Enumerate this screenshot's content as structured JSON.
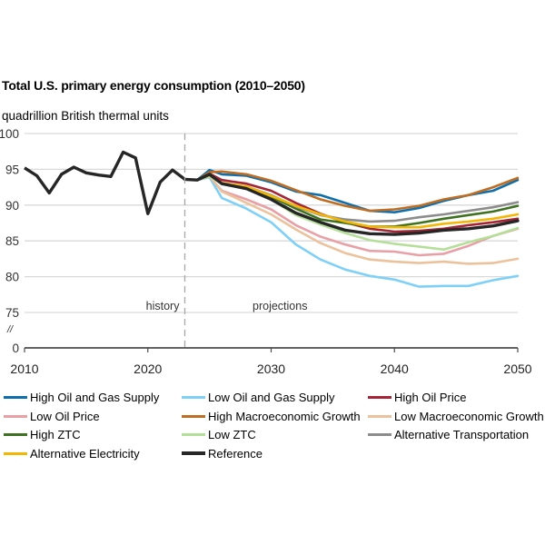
{
  "chart_data": {
    "type": "line",
    "title": "Total U.S. primary energy consumption (2010–2050)",
    "ylabel": "quadrillion British thermal units",
    "xlabel": "",
    "xlim": [
      2010,
      2050
    ],
    "ylim": [
      75,
      100
    ],
    "y_axis_break": true,
    "x_ticks": [
      "2010",
      "2020",
      "2030",
      "2040",
      "2050"
    ],
    "y_ticks": [
      "100",
      "95",
      "90",
      "85",
      "80",
      "75",
      "0"
    ],
    "break_marker": "//",
    "grid": true,
    "divider_year": 2023,
    "annotations": {
      "history": "history",
      "projections": "projections"
    },
    "legend_position": "bottom",
    "history": {
      "x": [
        2010,
        2011,
        2012,
        2013,
        2014,
        2015,
        2016,
        2017,
        2018,
        2019,
        2020,
        2021,
        2022,
        2023
      ],
      "values": [
        95.2,
        94.1,
        91.7,
        94.3,
        95.3,
        94.5,
        94.2,
        94.0,
        97.4,
        96.6,
        88.8,
        93.2,
        94.9,
        93.6
      ]
    },
    "projection_x": [
      2023,
      2024,
      2025,
      2026,
      2028,
      2030,
      2032,
      2034,
      2036,
      2038,
      2040,
      2042,
      2044,
      2046,
      2048,
      2050
    ],
    "series": [
      {
        "name": "High Oil and Gas Supply",
        "color": "#0f6fad",
        "values": [
          93.6,
          93.5,
          94.9,
          94.3,
          94.1,
          93.2,
          91.9,
          91.4,
          90.3,
          89.2,
          89.0,
          89.6,
          90.6,
          91.4,
          92.0,
          93.5
        ]
      },
      {
        "name": "Low Oil and Gas Supply",
        "color": "#7fd0f6",
        "values": [
          93.6,
          93.5,
          93.9,
          91.0,
          89.5,
          87.6,
          84.5,
          82.4,
          81.0,
          80.1,
          79.6,
          78.6,
          78.7,
          78.7,
          79.5,
          80.1
        ]
      },
      {
        "name": "High Oil Price",
        "color": "#a52436",
        "values": [
          93.6,
          93.5,
          94.4,
          93.5,
          93.0,
          92.0,
          90.3,
          88.8,
          87.6,
          86.7,
          86.3,
          86.4,
          86.7,
          87.2,
          87.6,
          88.1
        ]
      },
      {
        "name": "Low Oil Price",
        "color": "#e8a0a6",
        "values": [
          93.6,
          93.5,
          94.0,
          92.0,
          90.8,
          89.4,
          87.2,
          85.6,
          84.5,
          83.6,
          83.5,
          83.0,
          83.2,
          84.3,
          85.7,
          86.7
        ]
      },
      {
        "name": "High Macroeconomic Growth",
        "color": "#bf6d22",
        "values": [
          93.6,
          93.5,
          94.6,
          94.7,
          94.3,
          93.4,
          92.1,
          90.8,
          89.9,
          89.2,
          89.4,
          89.9,
          90.8,
          91.4,
          92.5,
          93.8
        ]
      },
      {
        "name": "Low Macroeconomic Growth",
        "color": "#ecc29c",
        "values": [
          93.6,
          93.5,
          94.1,
          91.9,
          90.3,
          88.7,
          86.6,
          84.7,
          83.3,
          82.4,
          82.1,
          81.9,
          82.1,
          81.8,
          81.9,
          82.5
        ]
      },
      {
        "name": "High ZTC",
        "color": "#3f7220",
        "values": [
          93.6,
          93.5,
          94.2,
          93.0,
          92.6,
          91.2,
          89.5,
          88.0,
          87.5,
          87.0,
          87.0,
          87.5,
          88.1,
          88.6,
          89.1,
          89.9
        ]
      },
      {
        "name": "Low ZTC",
        "color": "#b4df98",
        "values": [
          93.6,
          93.5,
          94.0,
          93.0,
          92.4,
          90.8,
          88.6,
          87.3,
          86.1,
          85.1,
          84.6,
          84.2,
          83.8,
          84.8,
          85.7,
          86.8
        ]
      },
      {
        "name": "Alternative Transportation",
        "color": "#8c8c8c",
        "values": [
          93.6,
          93.5,
          94.2,
          93.0,
          92.6,
          91.4,
          89.8,
          88.6,
          88.0,
          87.7,
          87.8,
          88.3,
          88.7,
          89.2,
          89.7,
          90.4
        ]
      },
      {
        "name": "Alternative Electricity",
        "color": "#f2b705",
        "values": [
          93.6,
          93.5,
          94.2,
          93.1,
          92.6,
          91.3,
          89.9,
          88.7,
          87.7,
          87.0,
          86.9,
          86.9,
          87.4,
          87.7,
          88.1,
          88.7
        ]
      },
      {
        "name": "Reference",
        "color": "#262626",
        "values": [
          93.6,
          93.5,
          94.3,
          93.0,
          92.3,
          90.8,
          88.9,
          87.6,
          86.5,
          86.0,
          85.9,
          86.1,
          86.5,
          86.7,
          87.1,
          87.8
        ]
      }
    ]
  }
}
